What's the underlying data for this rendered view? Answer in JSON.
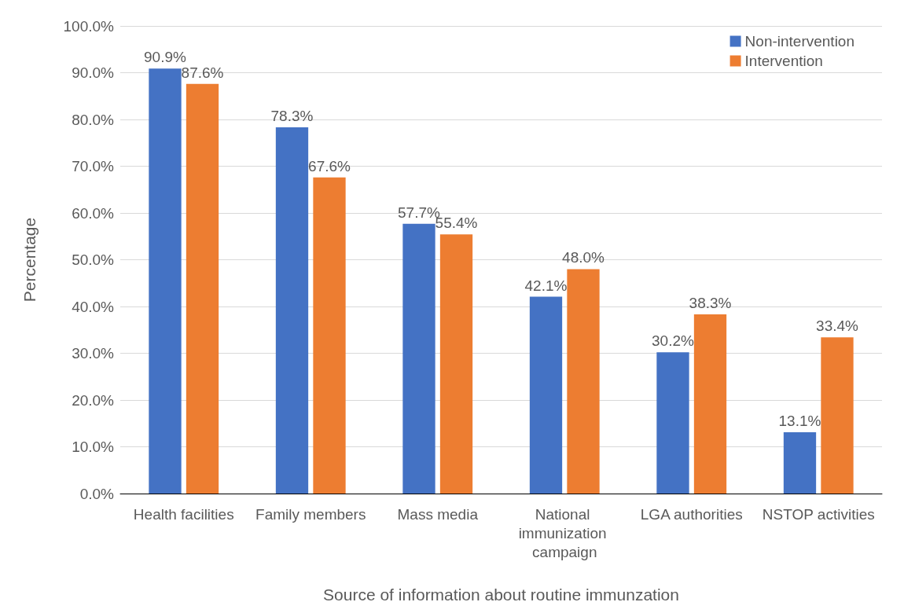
{
  "chart_data": {
    "type": "bar",
    "xlabel": "Source of information about routine immunzation",
    "ylabel": "Percentage",
    "categories": [
      "Health facilities",
      "Family members",
      "Mass media",
      "National immunization campaign",
      "LGA authorities",
      "NSTOP activities"
    ],
    "series": [
      {
        "name": "Non-intervention",
        "color": "#4472c4",
        "values": [
          90.9,
          78.3,
          57.7,
          42.1,
          30.2,
          13.1
        ],
        "value_labels": [
          "90.9%",
          "78.3%",
          "57.7%",
          "42.1%",
          "30.2%",
          "13.1%"
        ]
      },
      {
        "name": "Intervention",
        "color": "#ed7d31",
        "values": [
          87.6,
          67.6,
          55.4,
          48.0,
          38.3,
          33.4
        ],
        "value_labels": [
          "87.6%",
          "67.6%",
          "55.4%",
          "48.0%",
          "38.3%",
          "33.4%"
        ]
      }
    ],
    "ylim": [
      0,
      100
    ],
    "yticks": [
      {
        "value": 0,
        "label": "0.0%"
      },
      {
        "value": 10,
        "label": "10.0%"
      },
      {
        "value": 20,
        "label": "20.0%"
      },
      {
        "value": 30,
        "label": "30.0%"
      },
      {
        "value": 40,
        "label": "40.0%"
      },
      {
        "value": 50,
        "label": "50.0%"
      },
      {
        "value": 60,
        "label": "60.0%"
      },
      {
        "value": 70,
        "label": "70.0%"
      },
      {
        "value": 80,
        "label": "80.0%"
      },
      {
        "value": 90,
        "label": "90.0%"
      },
      {
        "value": 100,
        "label": "100.0%"
      }
    ],
    "grid": "y",
    "legend": "top right"
  }
}
